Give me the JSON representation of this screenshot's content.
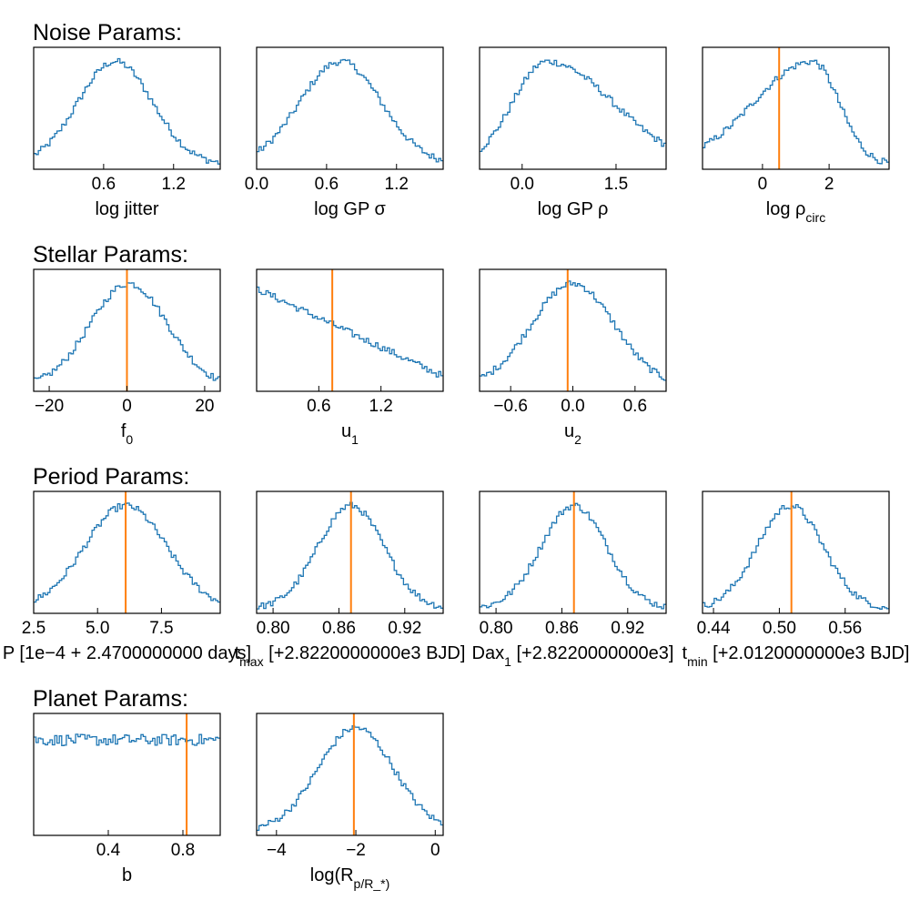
{
  "chart_data": {
    "type": "histogram-grid",
    "sections": [
      {
        "title": "Noise Params:",
        "panels": [
          {
            "xlabel": "log jitter",
            "xlim": [
              0.0,
              1.6
            ],
            "xticks": [
              0.6,
              1.2
            ],
            "tick_labels": [
              "0.6",
              "1.2"
            ],
            "hist_shape": "gaussian",
            "center": 0.7,
            "width": 0.32,
            "skew": 0.0,
            "truth": null
          },
          {
            "xlabel": "log GP σ",
            "xlim": [
              0.0,
              1.6
            ],
            "xticks": [
              0.0,
              0.6,
              1.2
            ],
            "tick_labels": [
              "0.0",
              "0.6",
              "1.2"
            ],
            "hist_shape": "gaussian",
            "center": 0.72,
            "width": 0.35,
            "skew": 0.0,
            "truth": null
          },
          {
            "xlabel": "log GP ρ",
            "xlim": [
              -0.68,
              2.3
            ],
            "xticks": [
              0.0,
              1.5
            ],
            "tick_labels": [
              "0.0",
              "1.5"
            ],
            "hist_shape": "skewed",
            "center": 0.4,
            "width": 0.55,
            "skew": 0.9,
            "truth": null
          },
          {
            "xlabel": "log ρ_circ",
            "xlim": [
              -1.8,
              3.8
            ],
            "xticks": [
              0,
              2
            ],
            "tick_labels": [
              "0",
              "2"
            ],
            "hist_shape": "skewed",
            "center": 1.5,
            "width": 0.8,
            "skew": -1.2,
            "truth": 0.5
          }
        ]
      },
      {
        "title": "Stellar Params:",
        "panels": [
          {
            "xlabel": "f_0",
            "xlim": [
              -24,
              24
            ],
            "xticks": [
              -20,
              0,
              20
            ],
            "tick_labels": [
              "−20",
              "0",
              "20"
            ],
            "hist_shape": "gaussian",
            "center": 0.5,
            "width": 10,
            "skew": 0.0,
            "truth": 0
          },
          {
            "xlabel": "u_1",
            "xlim": [
              0.0,
              1.8
            ],
            "xticks": [
              0.6,
              1.2
            ],
            "tick_labels": [
              "0.6",
              "1.2"
            ],
            "hist_shape": "linear",
            "center": 0.0,
            "width": 1.0,
            "skew": 0.0,
            "truth": 0.73
          },
          {
            "xlabel": "u_2",
            "xlim": [
              -0.9,
              0.9
            ],
            "xticks": [
              -0.6,
              0.0,
              0.6
            ],
            "tick_labels": [
              "−0.6",
              "0.0",
              "0.6"
            ],
            "hist_shape": "gaussian",
            "center": 0.0,
            "width": 0.4,
            "skew": 0.0,
            "truth": -0.05
          }
        ]
      },
      {
        "title": "Period Params:",
        "panels": [
          {
            "xlabel": "P [1e−4 + 2.4700000000 days]",
            "xlim": [
              2.5,
              9.8
            ],
            "xticks": [
              2.5,
              5.0,
              7.5
            ],
            "tick_labels": [
              "2.5",
              "5.0",
              "7.5"
            ],
            "hist_shape": "gaussian",
            "center": 6.1,
            "width": 1.6,
            "skew": 0.0,
            "truth": 6.1
          },
          {
            "xlabel": "t_max [+2.8220000000e3 BJD]",
            "xlim": [
              0.785,
              0.955
            ],
            "xticks": [
              0.8,
              0.86,
              0.92
            ],
            "tick_labels": [
              "0.80",
              "0.86",
              "0.92"
            ],
            "hist_shape": "gaussian",
            "center": 0.871,
            "width": 0.03,
            "skew": 0.0,
            "truth": 0.871
          },
          {
            "xlabel": "Dax_1 [+2.8220000000e3]",
            "xlim": [
              0.785,
              0.955
            ],
            "xticks": [
              0.8,
              0.86,
              0.92
            ],
            "tick_labels": [
              "0.80",
              "0.86",
              "0.92"
            ],
            "hist_shape": "gaussian",
            "center": 0.871,
            "width": 0.03,
            "skew": 0.0,
            "truth": 0.871
          },
          {
            "xlabel": "t_min [+2.0120000000e3 BJD]",
            "xlim": [
              0.43,
              0.6
            ],
            "xticks": [
              0.44,
              0.5,
              0.56
            ],
            "tick_labels": [
              "0.44",
              "0.50",
              "0.56"
            ],
            "hist_shape": "gaussian",
            "center": 0.51,
            "width": 0.03,
            "skew": 0.0,
            "truth": 0.511
          }
        ]
      },
      {
        "title": "Planet Params:",
        "panels": [
          {
            "xlabel": "b",
            "xlim": [
              0.0,
              1.0
            ],
            "xticks": [
              0.4,
              0.8
            ],
            "tick_labels": [
              "0.4",
              "0.8"
            ],
            "hist_shape": "uniform",
            "center": 0.5,
            "width": 1.0,
            "skew": 0.0,
            "truth": 0.82
          },
          {
            "xlabel": "log(R_p/R_*)",
            "xlim": [
              -4.5,
              0.2
            ],
            "xticks": [
              -4,
              -2,
              0
            ],
            "tick_labels": [
              "−4",
              "−2",
              "0"
            ],
            "hist_shape": "gaussian",
            "center": -2.0,
            "width": 0.95,
            "skew": 0.0,
            "truth": -2.05
          }
        ]
      }
    ],
    "colors": {
      "hist": "#1f77b4",
      "truth": "#ff7f0e",
      "axes": "#000000"
    }
  }
}
